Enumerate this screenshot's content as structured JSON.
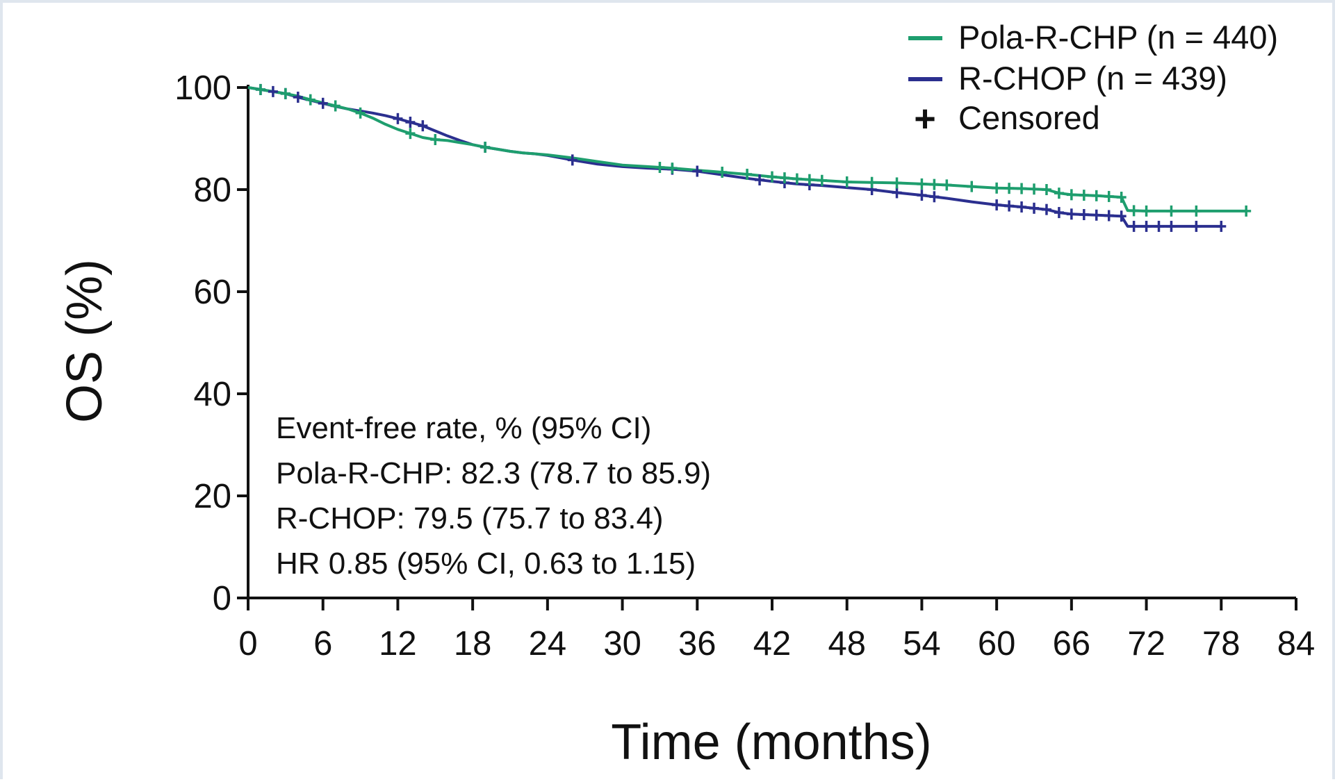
{
  "chart_data": {
    "type": "line",
    "title": "",
    "xlabel": "Time (months)",
    "ylabel": "OS (%)",
    "xlim": [
      0,
      84
    ],
    "ylim": [
      0,
      100
    ],
    "x_ticks": [
      0,
      6,
      12,
      18,
      24,
      30,
      36,
      42,
      48,
      54,
      60,
      66,
      72,
      78,
      84
    ],
    "y_ticks": [
      0,
      20,
      40,
      60,
      80,
      100
    ],
    "grid": false,
    "legend_position": "top-right",
    "legend": [
      {
        "label": "Pola-R-CHP (n = 440)",
        "color": "#1e9e6e",
        "symbol": "line"
      },
      {
        "label": "R-CHOP (n = 439)",
        "color": "#2b2f8f",
        "symbol": "line"
      },
      {
        "label": "Censored",
        "color": "#111111",
        "symbol": "plus"
      }
    ],
    "annotations": [
      "Event-free rate, % (95% CI)",
      "Pola-R-CHP: 82.3 (78.7 to 85.9)",
      "R-CHOP: 79.5 (75.7 to 83.4)",
      "HR 0.85 (95% CI, 0.63 to 1.15)"
    ],
    "series": [
      {
        "name": "Pola-R-CHP (n = 440)",
        "color": "#1e9e6e",
        "x": [
          0,
          1,
          2,
          3,
          4,
          5,
          6,
          7,
          8,
          9,
          10,
          11,
          12,
          13,
          14,
          15,
          16,
          17,
          18,
          19,
          20,
          21,
          22,
          23,
          24,
          26,
          28,
          30,
          32,
          34,
          36,
          38,
          40,
          42,
          44,
          46,
          48,
          50,
          52,
          54,
          56,
          58,
          60,
          62,
          64,
          65,
          66,
          68,
          70,
          70.5,
          72,
          74,
          76,
          78,
          80
        ],
        "y": [
          100,
          99.6,
          99.2,
          98.8,
          98.3,
          97.6,
          97.0,
          96.4,
          95.8,
          95.0,
          94.0,
          92.8,
          91.8,
          91.0,
          90.2,
          89.8,
          89.6,
          89.2,
          88.8,
          88.3,
          87.9,
          87.5,
          87.2,
          87.0,
          86.8,
          86.2,
          85.5,
          84.8,
          84.5,
          84.2,
          83.8,
          83.4,
          83.0,
          82.5,
          82.1,
          81.8,
          81.5,
          81.4,
          81.3,
          81.1,
          80.9,
          80.6,
          80.3,
          80.2,
          80.0,
          79.3,
          79.0,
          78.8,
          78.5,
          75.9,
          75.8,
          75.8,
          75.8,
          75.8,
          75.8
        ],
        "censored_x": [
          1,
          3,
          5,
          7,
          9,
          13,
          15,
          19,
          33,
          34,
          38,
          40,
          42,
          43,
          44,
          45,
          46,
          48,
          50,
          52,
          54,
          55,
          56,
          58,
          60,
          61,
          62,
          63,
          64,
          65,
          66,
          67,
          68,
          69,
          70,
          71,
          72,
          74,
          76,
          80
        ]
      },
      {
        "name": "R-CHOP (n = 439)",
        "color": "#2b2f8f",
        "x": [
          0,
          1,
          2,
          3,
          4,
          5,
          6,
          7,
          8,
          9,
          10,
          11,
          12,
          13,
          14,
          15,
          16,
          17,
          18,
          19,
          20,
          21,
          22,
          23,
          24,
          26,
          28,
          30,
          32,
          34,
          36,
          38,
          40,
          42,
          44,
          46,
          48,
          50,
          52,
          54,
          56,
          58,
          60,
          62,
          64,
          65,
          66,
          68,
          70,
          70.5,
          72,
          74,
          76,
          78
        ],
        "y": [
          100,
          99.6,
          99.2,
          98.8,
          98.1,
          97.5,
          96.9,
          96.3,
          95.8,
          95.4,
          95.0,
          94.5,
          93.9,
          93.2,
          92.5,
          91.5,
          90.5,
          89.6,
          88.8,
          88.3,
          87.9,
          87.5,
          87.2,
          87.0,
          86.7,
          85.8,
          85.0,
          84.5,
          84.2,
          84.0,
          83.6,
          82.9,
          82.2,
          81.6,
          81.1,
          80.8,
          80.4,
          80.0,
          79.4,
          78.9,
          78.3,
          77.6,
          77.0,
          76.6,
          76.1,
          75.5,
          75.2,
          75.0,
          74.8,
          72.8,
          72.8,
          72.8,
          72.8,
          72.8
        ],
        "censored_x": [
          1,
          2,
          3,
          4,
          6,
          12,
          13,
          14,
          19,
          26,
          34,
          36,
          41,
          43,
          45,
          50,
          52,
          54,
          55,
          60,
          61,
          62,
          63,
          64,
          65,
          66,
          67,
          68,
          69,
          70,
          71,
          72,
          73,
          74,
          76,
          78
        ]
      }
    ]
  }
}
